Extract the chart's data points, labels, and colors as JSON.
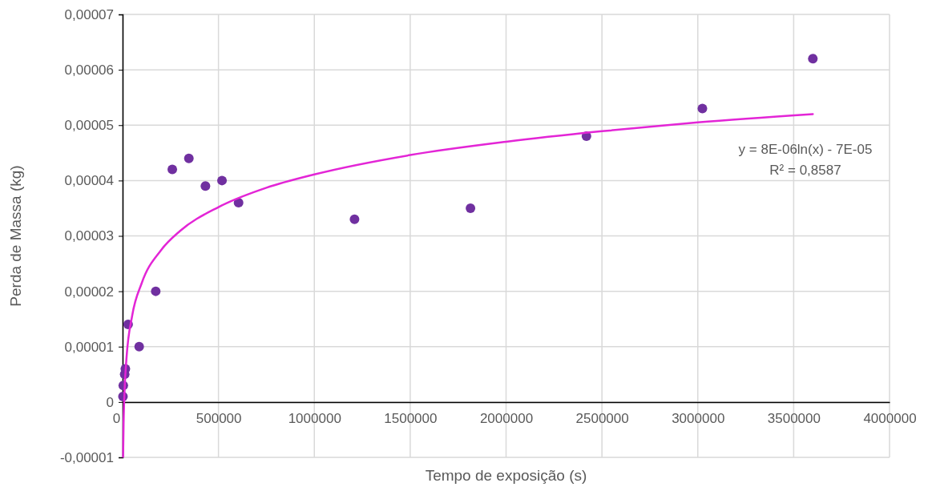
{
  "chart_data": {
    "type": "scatter",
    "xlabel": "Tempo de exposição (s)",
    "ylabel": "Perda de Massa (kg)",
    "xlim": [
      0,
      4000000
    ],
    "xticks": [
      0,
      500000,
      1000000,
      1500000,
      2000000,
      2500000,
      3000000,
      3500000,
      4000000
    ],
    "ylim": [
      -1e-05,
      7e-05
    ],
    "yticks": [
      {
        "value": -1e-05,
        "label": "-0,00001"
      },
      0,
      {
        "value": 1e-05,
        "label": "0,00001"
      },
      {
        "value": 2e-05,
        "label": "0,00002"
      },
      {
        "value": 3e-05,
        "label": "0,00003"
      },
      {
        "value": 4e-05,
        "label": "0,00004"
      },
      {
        "value": 5e-05,
        "label": "0,00005"
      },
      {
        "value": 6e-05,
        "label": "0,00006"
      },
      {
        "value": 7e-05,
        "label": "0,00007"
      }
    ],
    "grid": true,
    "marker": "circle",
    "series": [
      {
        "color": "#7030a0",
        "x": [
          1800,
          3600,
          10800,
          14400,
          28800,
          86400,
          172800,
          259200,
          345600,
          432000,
          518400,
          604800,
          1209600,
          1814400,
          2419200,
          3024000,
          3600000
        ],
        "values": [
          1e-06,
          3e-06,
          5e-06,
          6e-06,
          1.4e-05,
          1e-05,
          2e-05,
          4.2e-05,
          4.4e-05,
          3.9e-05,
          4e-05,
          3.6e-05,
          3.3e-05,
          3.5e-05,
          4.8e-05,
          5.3e-05,
          6.2e-05
        ]
      },
      {
        "type": "line",
        "color": "#e325d6",
        "marker": "none",
        "x": [
          2500,
          5000,
          10000,
          20000,
          50000,
          100000,
          200000,
          300000,
          500000,
          750000,
          1000000,
          1500000,
          2000000,
          2500000,
          3000000,
          3600000
        ],
        "values": [
          -9.9e-06,
          -4e-06,
          1.9e-06,
          7.8e-06,
          1.56e-05,
          2.15e-05,
          2.74e-05,
          3.09e-05,
          3.52e-05,
          3.87e-05,
          4.11e-05,
          4.46e-05,
          4.7e-05,
          4.89e-05,
          5.05e-05,
          5.2e-05
        ]
      }
    ],
    "annotations": [
      "y = 8E-06ln(x) - 7E-05",
      "R² = 0,8587"
    ]
  }
}
